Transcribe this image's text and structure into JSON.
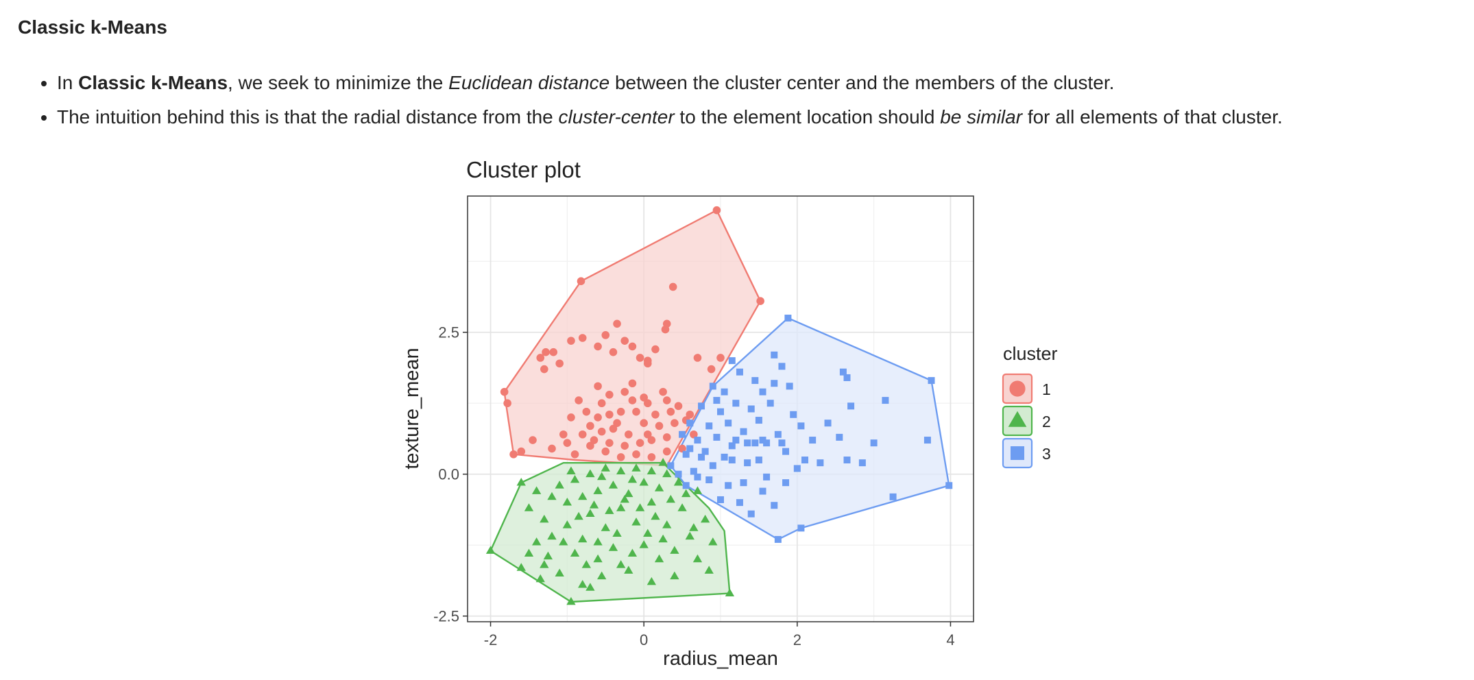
{
  "heading": "Classic k-Means",
  "bullets": [
    {
      "p1": "In ",
      "b1": "Classic k-Means",
      "p2": ", we seek to minimize the ",
      "i1": "Euclidean distance",
      "p3": " between the cluster center and the members of the cluster."
    },
    {
      "p1": "The intuition behind this is that the radial distance from the ",
      "i1": "cluster-center",
      "p2": " to the element location should ",
      "i2": "be similar",
      "p3": " for all elements of that cluster."
    }
  ],
  "chart_data": {
    "type": "scatter",
    "title": "Cluster plot",
    "xlabel": "radius_mean",
    "ylabel": "texture_mean",
    "xlim": [
      -2.3,
      4.3
    ],
    "ylim": [
      -2.6,
      4.9
    ],
    "xticks": [
      -2,
      0,
      2,
      4
    ],
    "yticks": [
      -2.5,
      0.0,
      2.5
    ],
    "xtick_labels": [
      "-2",
      "0",
      "2",
      "4"
    ],
    "ytick_labels": [
      "-2.5",
      "0.0",
      "2.5"
    ],
    "grid": true,
    "legend": {
      "title": "cluster",
      "position": "right"
    },
    "series": [
      {
        "name": "1",
        "color": "#f07b72",
        "fill": "#f8d3d0",
        "marker": "circle",
        "hull": [
          [
            -1.82,
            1.45
          ],
          [
            -0.82,
            3.4
          ],
          [
            0.95,
            4.65
          ],
          [
            1.52,
            3.05
          ],
          [
            0.3,
            0.15
          ],
          [
            -0.9,
            0.25
          ],
          [
            -1.7,
            0.35
          ],
          [
            -1.8,
            1.25
          ]
        ],
        "points": [
          [
            -0.82,
            3.4
          ],
          [
            0.95,
            4.65
          ],
          [
            1.52,
            3.05
          ],
          [
            0.38,
            3.3
          ],
          [
            -1.82,
            1.45
          ],
          [
            -1.78,
            1.25
          ],
          [
            -1.7,
            0.35
          ],
          [
            -1.6,
            0.4
          ],
          [
            -1.35,
            2.05
          ],
          [
            -1.28,
            2.15
          ],
          [
            -1.18,
            2.15
          ],
          [
            -1.1,
            1.95
          ],
          [
            -0.95,
            2.35
          ],
          [
            -0.8,
            2.4
          ],
          [
            -0.6,
            2.25
          ],
          [
            -0.5,
            2.45
          ],
          [
            -0.4,
            2.15
          ],
          [
            -0.35,
            2.65
          ],
          [
            -0.25,
            2.35
          ],
          [
            -0.15,
            2.25
          ],
          [
            -0.05,
            2.05
          ],
          [
            0.05,
            1.95
          ],
          [
            0.15,
            2.2
          ],
          [
            0.28,
            2.55
          ],
          [
            0.3,
            2.65
          ],
          [
            0.05,
            2.0
          ],
          [
            0.7,
            2.05
          ],
          [
            1.0,
            2.05
          ],
          [
            0.88,
            1.85
          ],
          [
            -1.3,
            1.85
          ],
          [
            -1.45,
            0.6
          ],
          [
            -1.2,
            0.45
          ],
          [
            -1.05,
            0.7
          ],
          [
            -0.95,
            1.0
          ],
          [
            -0.85,
            1.3
          ],
          [
            -0.75,
            1.1
          ],
          [
            -0.7,
            0.85
          ],
          [
            -0.6,
            1.55
          ],
          [
            -0.55,
            1.25
          ],
          [
            -0.45,
            1.05
          ],
          [
            -0.4,
            0.8
          ],
          [
            -0.3,
            1.1
          ],
          [
            -0.25,
            1.45
          ],
          [
            -0.2,
            0.7
          ],
          [
            -0.15,
            1.3
          ],
          [
            -0.1,
            1.1
          ],
          [
            0.0,
            0.9
          ],
          [
            0.05,
            1.25
          ],
          [
            0.1,
            0.6
          ],
          [
            0.15,
            1.05
          ],
          [
            0.2,
            0.85
          ],
          [
            0.25,
            1.45
          ],
          [
            0.3,
            0.65
          ],
          [
            0.35,
            1.1
          ],
          [
            0.4,
            0.9
          ],
          [
            0.45,
            1.2
          ],
          [
            0.55,
            0.95
          ],
          [
            0.6,
            1.05
          ],
          [
            0.65,
            0.7
          ],
          [
            0.5,
            0.45
          ],
          [
            0.3,
            0.4
          ],
          [
            0.1,
            0.3
          ],
          [
            -0.1,
            0.35
          ],
          [
            -0.3,
            0.3
          ],
          [
            -0.5,
            0.4
          ],
          [
            -0.7,
            0.5
          ],
          [
            -0.9,
            0.35
          ],
          [
            -1.0,
            0.55
          ],
          [
            -0.65,
            0.6
          ],
          [
            -0.45,
            0.55
          ],
          [
            -0.25,
            0.5
          ],
          [
            -0.05,
            0.55
          ],
          [
            0.05,
            0.7
          ],
          [
            -0.35,
            0.9
          ],
          [
            -0.55,
            0.75
          ],
          [
            -0.8,
            0.7
          ],
          [
            -0.15,
            1.6
          ],
          [
            0.0,
            1.35
          ],
          [
            -0.6,
            1.0
          ],
          [
            -0.45,
            1.4
          ],
          [
            0.3,
            1.3
          ]
        ]
      },
      {
        "name": "2",
        "color": "#4fb54c",
        "fill": "#d3ebd1",
        "marker": "triangle",
        "hull": [
          [
            -2.0,
            -1.35
          ],
          [
            -1.6,
            -0.15
          ],
          [
            -1.05,
            0.2
          ],
          [
            0.25,
            0.2
          ],
          [
            0.55,
            -0.2
          ],
          [
            0.85,
            -0.6
          ],
          [
            1.05,
            -1.0
          ],
          [
            1.12,
            -2.1
          ],
          [
            -0.95,
            -2.25
          ]
        ],
        "points": [
          [
            -2.0,
            -1.35
          ],
          [
            1.12,
            -2.1
          ],
          [
            -0.95,
            -2.25
          ],
          [
            -1.6,
            -0.15
          ],
          [
            0.25,
            0.2
          ],
          [
            -0.8,
            -1.95
          ],
          [
            -0.7,
            -2.0
          ],
          [
            -1.6,
            -1.65
          ],
          [
            -1.5,
            -1.4
          ],
          [
            -1.4,
            -1.2
          ],
          [
            -1.3,
            -1.6
          ],
          [
            -1.2,
            -1.1
          ],
          [
            -1.1,
            -1.75
          ],
          [
            -1.0,
            -0.9
          ],
          [
            -0.9,
            -1.4
          ],
          [
            -0.8,
            -1.15
          ],
          [
            -0.7,
            -0.7
          ],
          [
            -0.6,
            -1.5
          ],
          [
            -0.5,
            -0.95
          ],
          [
            -0.4,
            -1.3
          ],
          [
            -0.3,
            -0.6
          ],
          [
            -0.2,
            -1.7
          ],
          [
            -0.1,
            -0.85
          ],
          [
            0.0,
            -1.25
          ],
          [
            0.1,
            -0.5
          ],
          [
            0.2,
            -1.5
          ],
          [
            0.3,
            -0.9
          ],
          [
            0.4,
            -1.35
          ],
          [
            0.5,
            -0.6
          ],
          [
            0.6,
            -1.1
          ],
          [
            0.7,
            -1.5
          ],
          [
            0.8,
            -0.8
          ],
          [
            0.9,
            -1.2
          ],
          [
            0.4,
            -1.8
          ],
          [
            0.1,
            -1.9
          ],
          [
            -1.5,
            -0.6
          ],
          [
            -1.4,
            -0.3
          ],
          [
            -1.3,
            -0.8
          ],
          [
            -1.2,
            -0.4
          ],
          [
            -1.1,
            -0.2
          ],
          [
            -1.0,
            -0.5
          ],
          [
            -0.9,
            -0.1
          ],
          [
            -0.8,
            -0.4
          ],
          [
            -0.7,
            0.0
          ],
          [
            -0.6,
            -0.3
          ],
          [
            -0.5,
            0.1
          ],
          [
            -0.4,
            -0.2
          ],
          [
            -0.3,
            0.05
          ],
          [
            -0.2,
            -0.35
          ],
          [
            -0.1,
            0.1
          ],
          [
            0.0,
            -0.15
          ],
          [
            0.1,
            0.05
          ],
          [
            0.2,
            -0.25
          ],
          [
            0.3,
            0.0
          ],
          [
            0.45,
            -0.15
          ],
          [
            0.55,
            -0.35
          ],
          [
            0.7,
            -0.3
          ],
          [
            -0.65,
            -0.55
          ],
          [
            -0.45,
            -0.65
          ],
          [
            -0.25,
            -0.45
          ],
          [
            -0.05,
            -0.6
          ],
          [
            0.15,
            -0.75
          ],
          [
            -0.85,
            -0.75
          ],
          [
            -1.05,
            -1.2
          ],
          [
            -0.35,
            -1.05
          ],
          [
            -0.55,
            -1.8
          ],
          [
            -0.15,
            -1.4
          ],
          [
            0.25,
            -1.15
          ],
          [
            0.65,
            -0.95
          ],
          [
            -1.25,
            -1.45
          ],
          [
            -0.75,
            -1.6
          ],
          [
            -0.95,
            0.05
          ],
          [
            -0.55,
            -0.05
          ],
          [
            -0.15,
            -0.1
          ],
          [
            0.35,
            -0.45
          ],
          [
            -1.35,
            -1.85
          ],
          [
            0.85,
            -1.7
          ],
          [
            -0.3,
            -1.6
          ],
          [
            0.05,
            -1.05
          ],
          [
            -0.6,
            -1.2
          ]
        ]
      },
      {
        "name": "3",
        "color": "#6d9cf1",
        "fill": "#dfe8fb",
        "marker": "square",
        "hull": [
          [
            0.35,
            0.15
          ],
          [
            0.9,
            1.55
          ],
          [
            1.88,
            2.75
          ],
          [
            3.75,
            1.65
          ],
          [
            3.98,
            -0.2
          ],
          [
            2.05,
            -0.95
          ],
          [
            1.75,
            -1.15
          ],
          [
            0.55,
            -0.2
          ]
        ],
        "points": [
          [
            1.88,
            2.75
          ],
          [
            3.75,
            1.65
          ],
          [
            3.98,
            -0.2
          ],
          [
            1.75,
            -1.15
          ],
          [
            2.05,
            -0.95
          ],
          [
            0.35,
            0.15
          ],
          [
            0.55,
            -0.2
          ],
          [
            0.9,
            1.55
          ],
          [
            1.7,
            2.1
          ],
          [
            1.8,
            1.9
          ],
          [
            2.6,
            1.8
          ],
          [
            2.65,
            1.7
          ],
          [
            2.7,
            1.2
          ],
          [
            3.15,
            1.3
          ],
          [
            3.7,
            0.6
          ],
          [
            3.25,
            -0.4
          ],
          [
            3.0,
            0.55
          ],
          [
            2.85,
            0.2
          ],
          [
            2.65,
            0.25
          ],
          [
            2.55,
            0.65
          ],
          [
            2.3,
            0.2
          ],
          [
            2.1,
            0.25
          ],
          [
            2.2,
            0.6
          ],
          [
            2.05,
            0.85
          ],
          [
            1.95,
            1.05
          ],
          [
            1.85,
            0.4
          ],
          [
            1.75,
            0.7
          ],
          [
            1.65,
            1.25
          ],
          [
            1.55,
            1.45
          ],
          [
            1.5,
            0.95
          ],
          [
            1.45,
            0.55
          ],
          [
            1.35,
            0.2
          ],
          [
            1.3,
            0.75
          ],
          [
            1.2,
            1.25
          ],
          [
            1.15,
            0.5
          ],
          [
            1.1,
            0.9
          ],
          [
            1.05,
            0.3
          ],
          [
            1.0,
            1.1
          ],
          [
            0.95,
            0.65
          ],
          [
            0.9,
            0.15
          ],
          [
            0.85,
            0.85
          ],
          [
            0.8,
            0.4
          ],
          [
            0.75,
            1.2
          ],
          [
            0.7,
            0.6
          ],
          [
            0.65,
            0.05
          ],
          [
            0.6,
            0.9
          ],
          [
            0.55,
            0.35
          ],
          [
            0.5,
            0.7
          ],
          [
            0.45,
            0.0
          ],
          [
            1.1,
            -0.2
          ],
          [
            1.25,
            -0.5
          ],
          [
            1.4,
            -0.7
          ],
          [
            1.55,
            -0.3
          ],
          [
            1.7,
            -0.55
          ],
          [
            1.85,
            -0.15
          ],
          [
            1.0,
            -0.45
          ],
          [
            0.85,
            -0.1
          ],
          [
            1.6,
            -0.05
          ],
          [
            1.3,
            -0.15
          ],
          [
            2.0,
            0.1
          ],
          [
            1.9,
            1.55
          ],
          [
            1.45,
            1.65
          ],
          [
            1.25,
            1.8
          ],
          [
            1.15,
            2.0
          ],
          [
            1.4,
            1.15
          ],
          [
            1.6,
            0.55
          ],
          [
            1.8,
            0.55
          ],
          [
            1.55,
            0.6
          ],
          [
            1.35,
            0.55
          ],
          [
            1.2,
            0.6
          ],
          [
            0.75,
            0.3
          ],
          [
            2.4,
            0.9
          ],
          [
            0.95,
            1.3
          ],
          [
            1.05,
            1.45
          ],
          [
            1.7,
            1.6
          ],
          [
            0.6,
            0.45
          ],
          [
            1.15,
            0.25
          ],
          [
            1.5,
            0.25
          ],
          [
            0.7,
            -0.05
          ]
        ]
      }
    ]
  }
}
